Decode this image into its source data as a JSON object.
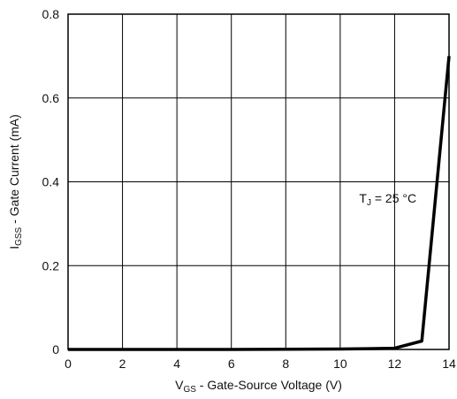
{
  "chart_data": {
    "type": "line",
    "xlabel": {
      "main": "V",
      "sub": "GS",
      "rest": " - Gate-Source Voltage (V)"
    },
    "ylabel": {
      "main": "I",
      "sub": "GSS",
      "rest": " - Gate Current (mA)"
    },
    "xlim": [
      0,
      14
    ],
    "ylim": [
      0,
      0.8
    ],
    "x_ticks": [
      0,
      2,
      4,
      6,
      8,
      10,
      12,
      14
    ],
    "y_ticks": [
      0,
      0.2,
      0.4,
      0.6,
      0.8
    ],
    "x_tick_labels": [
      "0",
      "2",
      "4",
      "6",
      "8",
      "10",
      "12",
      "14"
    ],
    "y_tick_labels": [
      "0",
      "0.2",
      "0.4",
      "0.6",
      "0.8"
    ],
    "grid": true,
    "series": [
      {
        "x": [
          0,
          2,
          4,
          6,
          8,
          10,
          11,
          12,
          13,
          14
        ],
        "y": [
          0,
          0,
          0,
          0,
          0.0005,
          0.001,
          0.002,
          0.003,
          0.02,
          0.7
        ],
        "color": "#000000"
      }
    ],
    "annotation": {
      "main": "T",
      "sub": "J",
      "rest": " = 25 °C",
      "x": 10.7,
      "y": 0.35
    }
  }
}
